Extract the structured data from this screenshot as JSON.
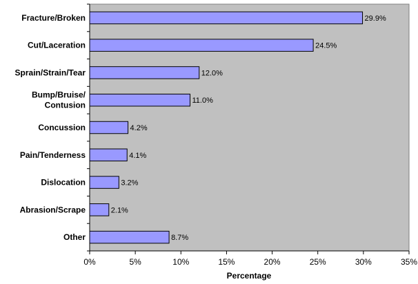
{
  "chart_data": {
    "type": "bar",
    "orientation": "horizontal",
    "categories": [
      "Fracture/Broken",
      "Cut/Laceration",
      "Sprain/Strain/Tear",
      "Bump/Bruise/ Contusion",
      "Concussion",
      "Pain/Tenderness",
      "Dislocation",
      "Abrasion/Scrape",
      "Other"
    ],
    "values": [
      29.9,
      24.5,
      12.0,
      11.0,
      4.2,
      4.1,
      3.2,
      2.1,
      8.7
    ],
    "data_labels": [
      "29.9%",
      "24.5%",
      "12.0%",
      "11.0%",
      "4.2%",
      "4.1%",
      "3.2%",
      "2.1%",
      "8.7%"
    ],
    "xlabel": "Percentage",
    "ylabel": "",
    "xlim": [
      0,
      35
    ],
    "ticks": [
      0,
      5,
      10,
      15,
      20,
      25,
      30,
      35
    ],
    "tick_labels": [
      "0%",
      "5%",
      "10%",
      "15%",
      "20%",
      "25%",
      "30%",
      "35%"
    ],
    "grid": false,
    "legend": "none",
    "colors": {
      "bar_fill": "#9999ff",
      "bar_stroke": "#000000",
      "plot_background": "#c0c0c0"
    }
  }
}
